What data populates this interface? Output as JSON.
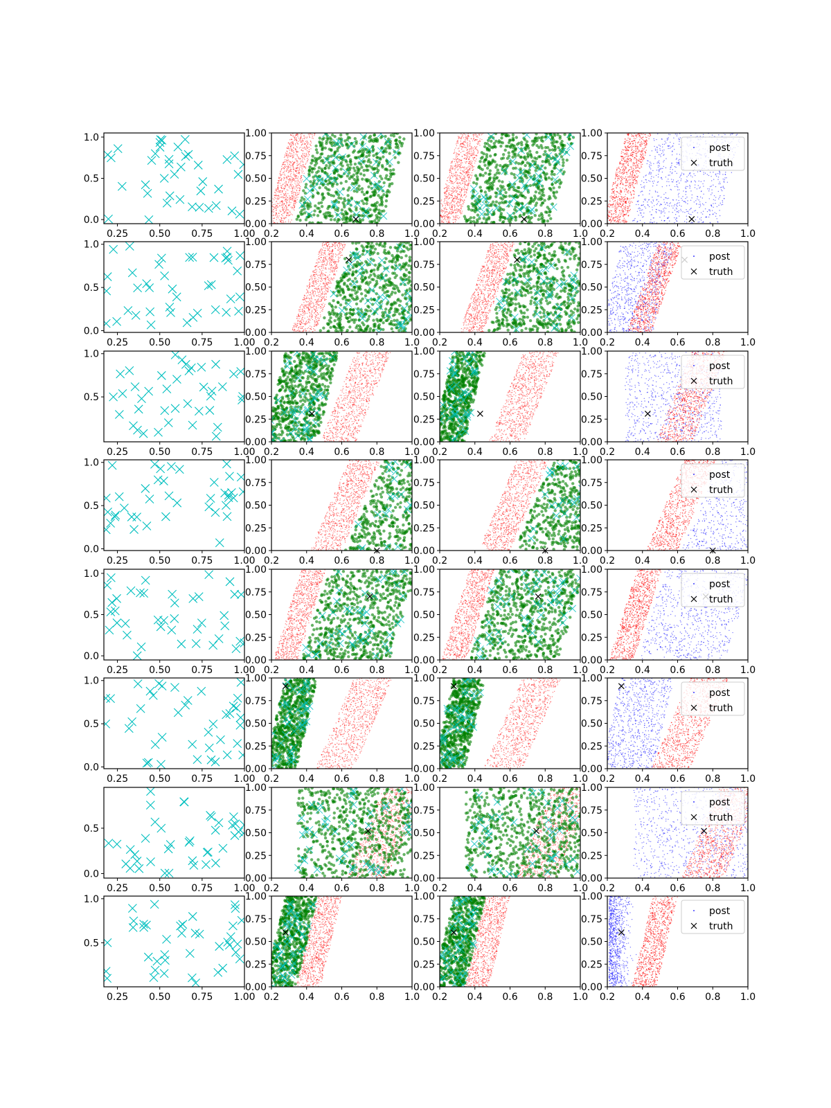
{
  "figure": {
    "rows": 8,
    "cols": 4,
    "colors": {
      "design": "#00bfbf",
      "green": "#008000",
      "red": "#ff0000",
      "blue": "#0000ff",
      "truth": "#000000"
    },
    "legend": {
      "post": "post",
      "truth": "truth"
    }
  },
  "chart_data": [
    {
      "type": "scatter",
      "column": "design",
      "xlim": [
        0.17,
        1.0
      ],
      "ylim_by_row": [
        [
          -0.05,
          1.05
        ],
        [
          -0.02,
          1.03
        ],
        [
          -0.02,
          1.03
        ],
        [
          -0.02,
          1.03
        ],
        [
          -0.05,
          1.05
        ],
        [
          -0.02,
          1.03
        ],
        [
          -0.05,
          0.95
        ],
        [
          0.0,
          1.03
        ]
      ],
      "xticks": [
        "0.25",
        "0.50",
        "0.75",
        "1.00"
      ],
      "yticks_by_row": [
        [
          "0.0",
          "0.5",
          "1.0"
        ],
        [
          "0.0",
          "0.5",
          "1.0"
        ],
        [
          "0.5",
          "1.0"
        ],
        [
          "0.0",
          "0.5",
          "1.0"
        ],
        [
          "0.0",
          "0.5",
          "1.0"
        ],
        [
          "0.0",
          "0.5",
          "1.0"
        ],
        [
          "0.0",
          "0.5"
        ],
        [
          "0.5",
          "1.0"
        ]
      ],
      "series": [
        {
          "marker": "x",
          "color": "#00bfbf",
          "n_points": 40
        }
      ],
      "grid": false
    },
    {
      "type": "scatter",
      "column": "prior-posterior-samples-a",
      "xlim": [
        0.2,
        1.0
      ],
      "ylim": [
        0.0,
        1.0
      ],
      "xticks": [
        "0.2",
        "0.4",
        "0.6",
        "0.8",
        "1.0"
      ],
      "yticks": [
        "0.00",
        "0.25",
        "0.50",
        "0.75",
        "1.00"
      ],
      "truth_by_row": [
        [
          0.68,
          0.05
        ],
        [
          0.64,
          0.8
        ],
        [
          0.43,
          0.31
        ],
        [
          0.8,
          0.0
        ],
        [
          0.76,
          0.7
        ],
        [
          0.28,
          0.91
        ],
        [
          0.75,
          0.52
        ],
        [
          0.28,
          0.6
        ]
      ],
      "grid": false
    },
    {
      "type": "scatter",
      "column": "prior-posterior-samples-b",
      "xlim": [
        0.2,
        1.0
      ],
      "ylim": [
        0.0,
        1.0
      ],
      "xticks": [
        "0.2",
        "0.4",
        "0.6",
        "0.8",
        "1.0"
      ],
      "yticks": [
        "0.00",
        "0.25",
        "0.50",
        "0.75",
        "1.00"
      ],
      "grid": false
    },
    {
      "type": "scatter",
      "column": "posterior",
      "xlim": [
        0.2,
        1.0
      ],
      "ylim": [
        0.0,
        1.0
      ],
      "xticks": [
        "0.2",
        "0.4",
        "0.6",
        "0.8",
        "1.0"
      ],
      "yticks": [
        "0.00",
        "0.25",
        "0.50",
        "0.75",
        "1.00"
      ],
      "legend": {
        "entries": [
          "post",
          "truth"
        ],
        "placement": "upper right"
      },
      "grid": false
    }
  ]
}
